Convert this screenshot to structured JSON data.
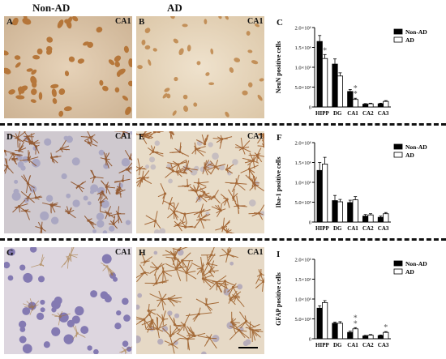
{
  "headers": {
    "left": "Non-AD",
    "right": "AD"
  },
  "rows": [
    {
      "left_panel": "A",
      "mid_panel": "B",
      "chart_panel": "C",
      "region": "CA1"
    },
    {
      "left_panel": "D",
      "mid_panel": "E",
      "chart_panel": "F",
      "region": "CA1"
    },
    {
      "left_panel": "G",
      "mid_panel": "H",
      "chart_panel": "I",
      "region": "CA1"
    }
  ],
  "colors": {
    "non_ad": "#000000",
    "ad": "#ffffff"
  },
  "chart_data": [
    {
      "type": "bar",
      "panel": "C",
      "categories": [
        "HIPP",
        "DG",
        "CA1",
        "CA2",
        "CA3"
      ],
      "series": [
        {
          "name": "Non-AD",
          "values": [
            1650000,
            1080000,
            390000,
            70000,
            80000
          ],
          "errors": [
            150000,
            130000,
            50000,
            15000,
            15000
          ]
        },
        {
          "name": "AD",
          "values": [
            1220000,
            780000,
            190000,
            80000,
            140000
          ],
          "errors": [
            100000,
            80000,
            30000,
            15000,
            20000
          ]
        }
      ],
      "ylabel": "NeuN positive cells",
      "ylim": [
        0,
        2000000
      ],
      "yticks": [
        "0",
        "5.0×10⁵",
        "1.0×10⁶",
        "1.5×10⁶",
        "2.0×10⁶"
      ],
      "annotations": [
        {
          "category": "HIPP",
          "series": "AD",
          "text": "*"
        },
        {
          "category": "CA1",
          "series": "AD",
          "text": "*"
        },
        {
          "category": "CA1",
          "series": "AD",
          "text": "*"
        }
      ]
    },
    {
      "type": "bar",
      "panel": "F",
      "categories": [
        "HIPP",
        "DG",
        "CA1",
        "CA2",
        "CA3"
      ],
      "series": [
        {
          "name": "Non-AD",
          "values": [
            1300000,
            540000,
            490000,
            150000,
            120000
          ],
          "errors": [
            200000,
            130000,
            60000,
            40000,
            30000
          ]
        },
        {
          "name": "AD",
          "values": [
            1460000,
            510000,
            560000,
            180000,
            210000
          ],
          "errors": [
            170000,
            60000,
            80000,
            30000,
            30000
          ]
        }
      ],
      "ylabel": "Iba-1 positive cells",
      "ylim": [
        0,
        2000000
      ],
      "yticks": [
        "0",
        "5.0×10⁵",
        "1.0×10⁶",
        "1.5×10⁶",
        "2.0×10⁶"
      ],
      "annotations": []
    },
    {
      "type": "bar",
      "panel": "I",
      "categories": [
        "HIPP",
        "DG",
        "CA1",
        "CA2",
        "CA3"
      ],
      "series": [
        {
          "name": "Non-AD",
          "values": [
            770000,
            390000,
            160000,
            70000,
            80000
          ],
          "errors": [
            60000,
            30000,
            30000,
            15000,
            15000
          ]
        },
        {
          "name": "AD",
          "values": [
            910000,
            390000,
            250000,
            90000,
            160000
          ],
          "errors": [
            50000,
            40000,
            30000,
            15000,
            20000
          ]
        }
      ],
      "ylabel": "GFAP positive cells",
      "ylim": [
        0,
        2000000
      ],
      "yticks": [
        "0",
        "5.0×10⁵",
        "1.0×10⁶",
        "1.5×10⁶",
        "2.0×10⁶"
      ],
      "annotations": [
        {
          "category": "CA1",
          "series": "AD",
          "text": "*"
        },
        {
          "category": "CA1",
          "series": "AD",
          "text": "*"
        },
        {
          "category": "CA3",
          "series": "AD",
          "text": "*"
        }
      ]
    }
  ]
}
